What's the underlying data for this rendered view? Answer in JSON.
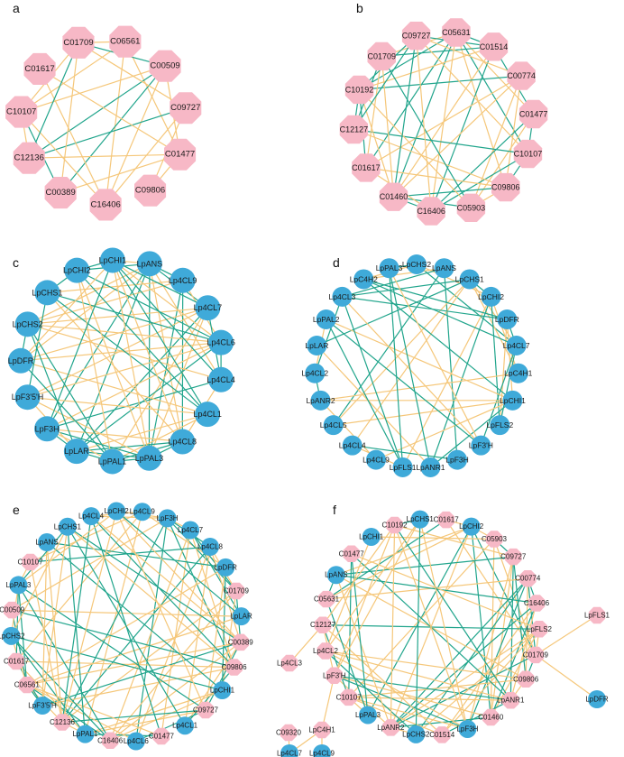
{
  "colors": {
    "compound_node": "#F7B8C6",
    "gene_node": "#3FAAD9",
    "positive_edge": "#F5C77A",
    "negative_edge": "#21A58C",
    "background": "#ffffff"
  },
  "networks": [
    {
      "panel": "a",
      "nodes": [
        {
          "label": "C06561",
          "type": "compound"
        },
        {
          "label": "C00509",
          "type": "compound"
        },
        {
          "label": "C09727",
          "type": "compound"
        },
        {
          "label": "C01477",
          "type": "compound"
        },
        {
          "label": "C09806",
          "type": "compound"
        },
        {
          "label": "C16406",
          "type": "compound"
        },
        {
          "label": "C00389",
          "type": "compound"
        },
        {
          "label": "C12136",
          "type": "compound"
        },
        {
          "label": "C10107",
          "type": "compound"
        },
        {
          "label": "C01617",
          "type": "compound"
        },
        {
          "label": "C01709",
          "type": "compound"
        }
      ]
    },
    {
      "panel": "b",
      "nodes": [
        {
          "label": "C05631",
          "type": "compound"
        },
        {
          "label": "C01514",
          "type": "compound"
        },
        {
          "label": "C00774",
          "type": "compound"
        },
        {
          "label": "C01477",
          "type": "compound"
        },
        {
          "label": "C10107",
          "type": "compound"
        },
        {
          "label": "C09806",
          "type": "compound"
        },
        {
          "label": "C05903",
          "type": "compound"
        },
        {
          "label": "C16406",
          "type": "compound"
        },
        {
          "label": "C01460",
          "type": "compound"
        },
        {
          "label": "C01617",
          "type": "compound"
        },
        {
          "label": "C12127",
          "type": "compound"
        },
        {
          "label": "C10192",
          "type": "compound"
        },
        {
          "label": "C01709",
          "type": "compound"
        },
        {
          "label": "C09727",
          "type": "compound"
        }
      ]
    },
    {
      "panel": "c",
      "nodes": [
        {
          "label": "LpANS",
          "type": "gene"
        },
        {
          "label": "Lp4CL9",
          "type": "gene"
        },
        {
          "label": "Lp4CL7",
          "type": "gene"
        },
        {
          "label": "Lp4CL6",
          "type": "gene"
        },
        {
          "label": "Lp4CL4",
          "type": "gene"
        },
        {
          "label": "Lp4CL1",
          "type": "gene"
        },
        {
          "label": "Lp4CL8",
          "type": "gene"
        },
        {
          "label": "LpPAL3",
          "type": "gene"
        },
        {
          "label": "LpPAL1",
          "type": "gene"
        },
        {
          "label": "LpLAR",
          "type": "gene"
        },
        {
          "label": "LpF3H",
          "type": "gene"
        },
        {
          "label": "LpF3'5'H",
          "type": "gene"
        },
        {
          "label": "LpDFR",
          "type": "gene"
        },
        {
          "label": "LpCHS2",
          "type": "gene"
        },
        {
          "label": "LpCHS1",
          "type": "gene"
        },
        {
          "label": "LpCHI2",
          "type": "gene"
        },
        {
          "label": "LpCHI1",
          "type": "gene"
        }
      ]
    },
    {
      "panel": "d",
      "nodes": [
        {
          "label": "LpCHS2",
          "type": "gene"
        },
        {
          "label": "LpANS",
          "type": "gene"
        },
        {
          "label": "LpCHS1",
          "type": "gene"
        },
        {
          "label": "LpCHI2",
          "type": "gene"
        },
        {
          "label": "LpDFR",
          "type": "gene"
        },
        {
          "label": "Lp4CL7",
          "type": "gene"
        },
        {
          "label": "LpC4H1",
          "type": "gene"
        },
        {
          "label": "LpCHI1",
          "type": "gene"
        },
        {
          "label": "LpFLS2",
          "type": "gene"
        },
        {
          "label": "LpF3'H",
          "type": "gene"
        },
        {
          "label": "LpF3H",
          "type": "gene"
        },
        {
          "label": "LpANR1",
          "type": "gene"
        },
        {
          "label": "LpFLS1",
          "type": "gene"
        },
        {
          "label": "Lp4CL9",
          "type": "gene"
        },
        {
          "label": "Lp4CL4",
          "type": "gene"
        },
        {
          "label": "Lp4CL5",
          "type": "gene"
        },
        {
          "label": "LpANR2",
          "type": "gene"
        },
        {
          "label": "Lp4CL2",
          "type": "gene"
        },
        {
          "label": "LpLAR",
          "type": "gene"
        },
        {
          "label": "LpPAL2",
          "type": "gene"
        },
        {
          "label": "Lp4CL3",
          "type": "gene"
        },
        {
          "label": "LpC4H2",
          "type": "gene"
        },
        {
          "label": "LpPAL3",
          "type": "gene"
        }
      ]
    },
    {
      "panel": "e",
      "nodes": [
        {
          "label": "Lp4CL9",
          "type": "gene"
        },
        {
          "label": "LpF3H",
          "type": "gene"
        },
        {
          "label": "Lp4CL7",
          "type": "gene"
        },
        {
          "label": "Lp4CL8",
          "type": "gene"
        },
        {
          "label": "LpDFR",
          "type": "gene"
        },
        {
          "label": "C01709",
          "type": "compound"
        },
        {
          "label": "LpLAR",
          "type": "gene"
        },
        {
          "label": "C00389",
          "type": "compound"
        },
        {
          "label": "C09806",
          "type": "compound"
        },
        {
          "label": "LpCHI1",
          "type": "gene"
        },
        {
          "label": "C09727",
          "type": "compound"
        },
        {
          "label": "Lp4CL1",
          "type": "gene"
        },
        {
          "label": "C01477",
          "type": "compound"
        },
        {
          "label": "Lp4CL6",
          "type": "gene"
        },
        {
          "label": "C16406",
          "type": "compound"
        },
        {
          "label": "LpPAL1",
          "type": "gene"
        },
        {
          "label": "C12136",
          "type": "compound"
        },
        {
          "label": "LpF3'5'H",
          "type": "gene"
        },
        {
          "label": "C06561",
          "type": "compound"
        },
        {
          "label": "C01617",
          "type": "compound"
        },
        {
          "label": "LpCHS2",
          "type": "gene"
        },
        {
          "label": "C00509",
          "type": "compound"
        },
        {
          "label": "LpPAL3",
          "type": "gene"
        },
        {
          "label": "C10107",
          "type": "compound"
        },
        {
          "label": "LpANS",
          "type": "gene"
        },
        {
          "label": "LpCHS1",
          "type": "gene"
        },
        {
          "label": "Lp4CL4",
          "type": "gene"
        },
        {
          "label": "LpCHI2",
          "type": "gene"
        }
      ]
    },
    {
      "panel": "f",
      "nodes": [
        {
          "label": "C01617",
          "type": "compound"
        },
        {
          "label": "LpCHI2",
          "type": "gene"
        },
        {
          "label": "C05903",
          "type": "compound"
        },
        {
          "label": "C09727",
          "type": "compound"
        },
        {
          "label": "C00774",
          "type": "compound"
        },
        {
          "label": "C16406",
          "type": "compound"
        },
        {
          "label": "LpFLS2",
          "type": "compound"
        },
        {
          "label": "C01709",
          "type": "compound"
        },
        {
          "label": "C09806",
          "type": "compound"
        },
        {
          "label": "LpANR1",
          "type": "compound"
        },
        {
          "label": "C01460",
          "type": "compound"
        },
        {
          "label": "LpF3H",
          "type": "gene"
        },
        {
          "label": "C01514",
          "type": "compound"
        },
        {
          "label": "LpCHS2",
          "type": "gene"
        },
        {
          "label": "LpANR2",
          "type": "compound"
        },
        {
          "label": "LpPAL3",
          "type": "gene"
        },
        {
          "label": "C10107",
          "type": "compound"
        },
        {
          "label": "LpF3'H",
          "type": "compound"
        },
        {
          "label": "Lp4CL2",
          "type": "compound"
        },
        {
          "label": "C12127",
          "type": "compound"
        },
        {
          "label": "C05631",
          "type": "compound"
        },
        {
          "label": "LpANS",
          "type": "gene"
        },
        {
          "label": "C01477",
          "type": "compound"
        },
        {
          "label": "LpCHI1",
          "type": "gene"
        },
        {
          "label": "C10192",
          "type": "compound"
        },
        {
          "label": "LpCHS1",
          "type": "gene"
        }
      ],
      "outer_nodes": [
        {
          "label": "LpFLS1",
          "type": "compound"
        },
        {
          "label": "LpDFR",
          "type": "gene"
        },
        {
          "label": "Lp4CL3",
          "type": "compound"
        },
        {
          "label": "LpC4H1",
          "type": "compound"
        },
        {
          "label": "C09320",
          "type": "compound"
        },
        {
          "label": "Lp4CL7",
          "type": "gene"
        },
        {
          "label": "Lp4CL9",
          "type": "gene"
        }
      ]
    }
  ]
}
